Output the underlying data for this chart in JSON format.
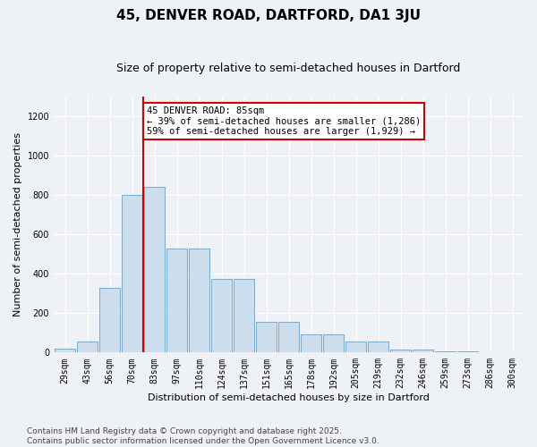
{
  "title": "45, DENVER ROAD, DARTFORD, DA1 3JU",
  "subtitle": "Size of property relative to semi-detached houses in Dartford",
  "xlabel": "Distribution of semi-detached houses by size in Dartford",
  "ylabel": "Number of semi-detached properties",
  "categories": [
    "29sqm",
    "43sqm",
    "56sqm",
    "70sqm",
    "83sqm",
    "97sqm",
    "110sqm",
    "124sqm",
    "137sqm",
    "151sqm",
    "165sqm",
    "178sqm",
    "192sqm",
    "205sqm",
    "219sqm",
    "232sqm",
    "246sqm",
    "259sqm",
    "273sqm",
    "286sqm",
    "300sqm"
  ],
  "values": [
    20,
    55,
    330,
    800,
    840,
    530,
    530,
    375,
    375,
    155,
    155,
    90,
    90,
    55,
    55,
    15,
    15,
    5,
    5,
    2,
    2
  ],
  "bar_color": "#ccdded",
  "bar_edge_color": "#7aaacb",
  "highlight_bin": 3,
  "highlight_color": "#cc0000",
  "annotation_text": "45 DENVER ROAD: 85sqm\n← 39% of semi-detached houses are smaller (1,286)\n59% of semi-detached houses are larger (1,929) →",
  "annotation_box_facecolor": "#ffffff",
  "annotation_box_edgecolor": "#cc0000",
  "ylim": [
    0,
    1300
  ],
  "yticks": [
    0,
    200,
    400,
    600,
    800,
    1000,
    1200
  ],
  "footer": "Contains HM Land Registry data © Crown copyright and database right 2025.\nContains public sector information licensed under the Open Government Licence v3.0.",
  "bg_color": "#eef2f7",
  "plot_bg_color": "#eef2f7",
  "grid_color": "#ffffff",
  "title_fontsize": 11,
  "subtitle_fontsize": 9,
  "label_fontsize": 8,
  "tick_fontsize": 7,
  "annot_fontsize": 7.5,
  "footer_fontsize": 6.5
}
